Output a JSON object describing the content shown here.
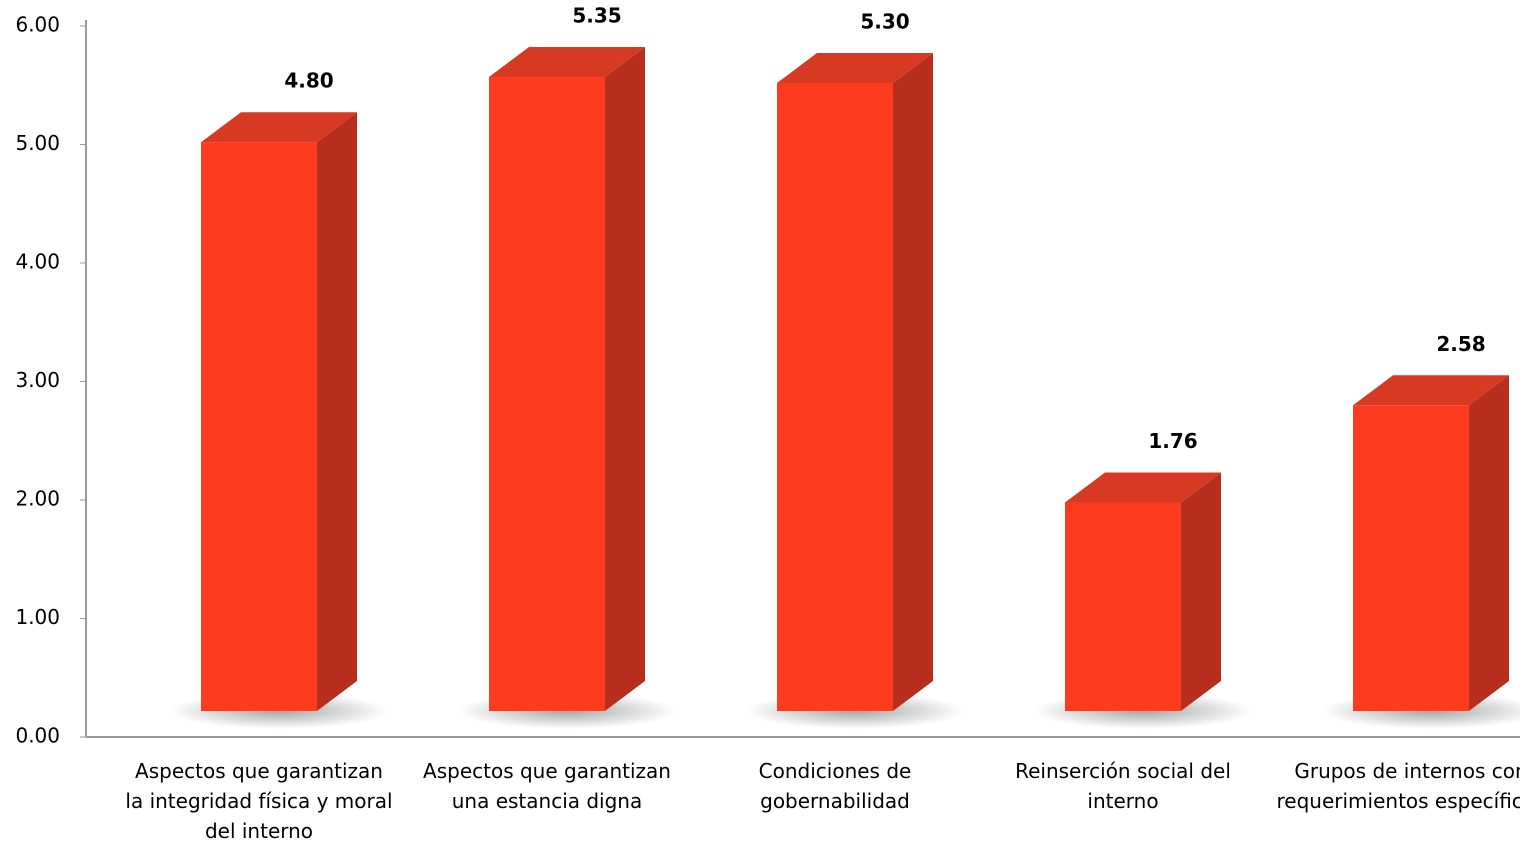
{
  "chart_data": {
    "type": "bar3d",
    "categories": [
      "Aspectos que garantizan la integridad física y moral del interno",
      "Aspectos que garantizan una estancia digna",
      "Condiciones de gobernabilidad",
      "Reinserción social del interno",
      "Grupos de internos con requerimientos específicos"
    ],
    "values": [
      4.8,
      5.35,
      5.3,
      1.76,
      2.58
    ],
    "value_labels": [
      "4.80",
      "5.35",
      "5.30",
      "1.76",
      "2.58"
    ],
    "color": "#ff3b1f",
    "ylim": [
      0,
      6
    ],
    "yticks": [
      {
        "value": 0,
        "label": "0.00"
      },
      {
        "value": 1,
        "label": "1.00"
      },
      {
        "value": 2,
        "label": "2.00"
      },
      {
        "value": 3,
        "label": "3.00"
      },
      {
        "value": 4,
        "label": "4.00"
      },
      {
        "value": 5,
        "label": "5.00"
      },
      {
        "value": 6,
        "label": "6.00"
      }
    ]
  }
}
